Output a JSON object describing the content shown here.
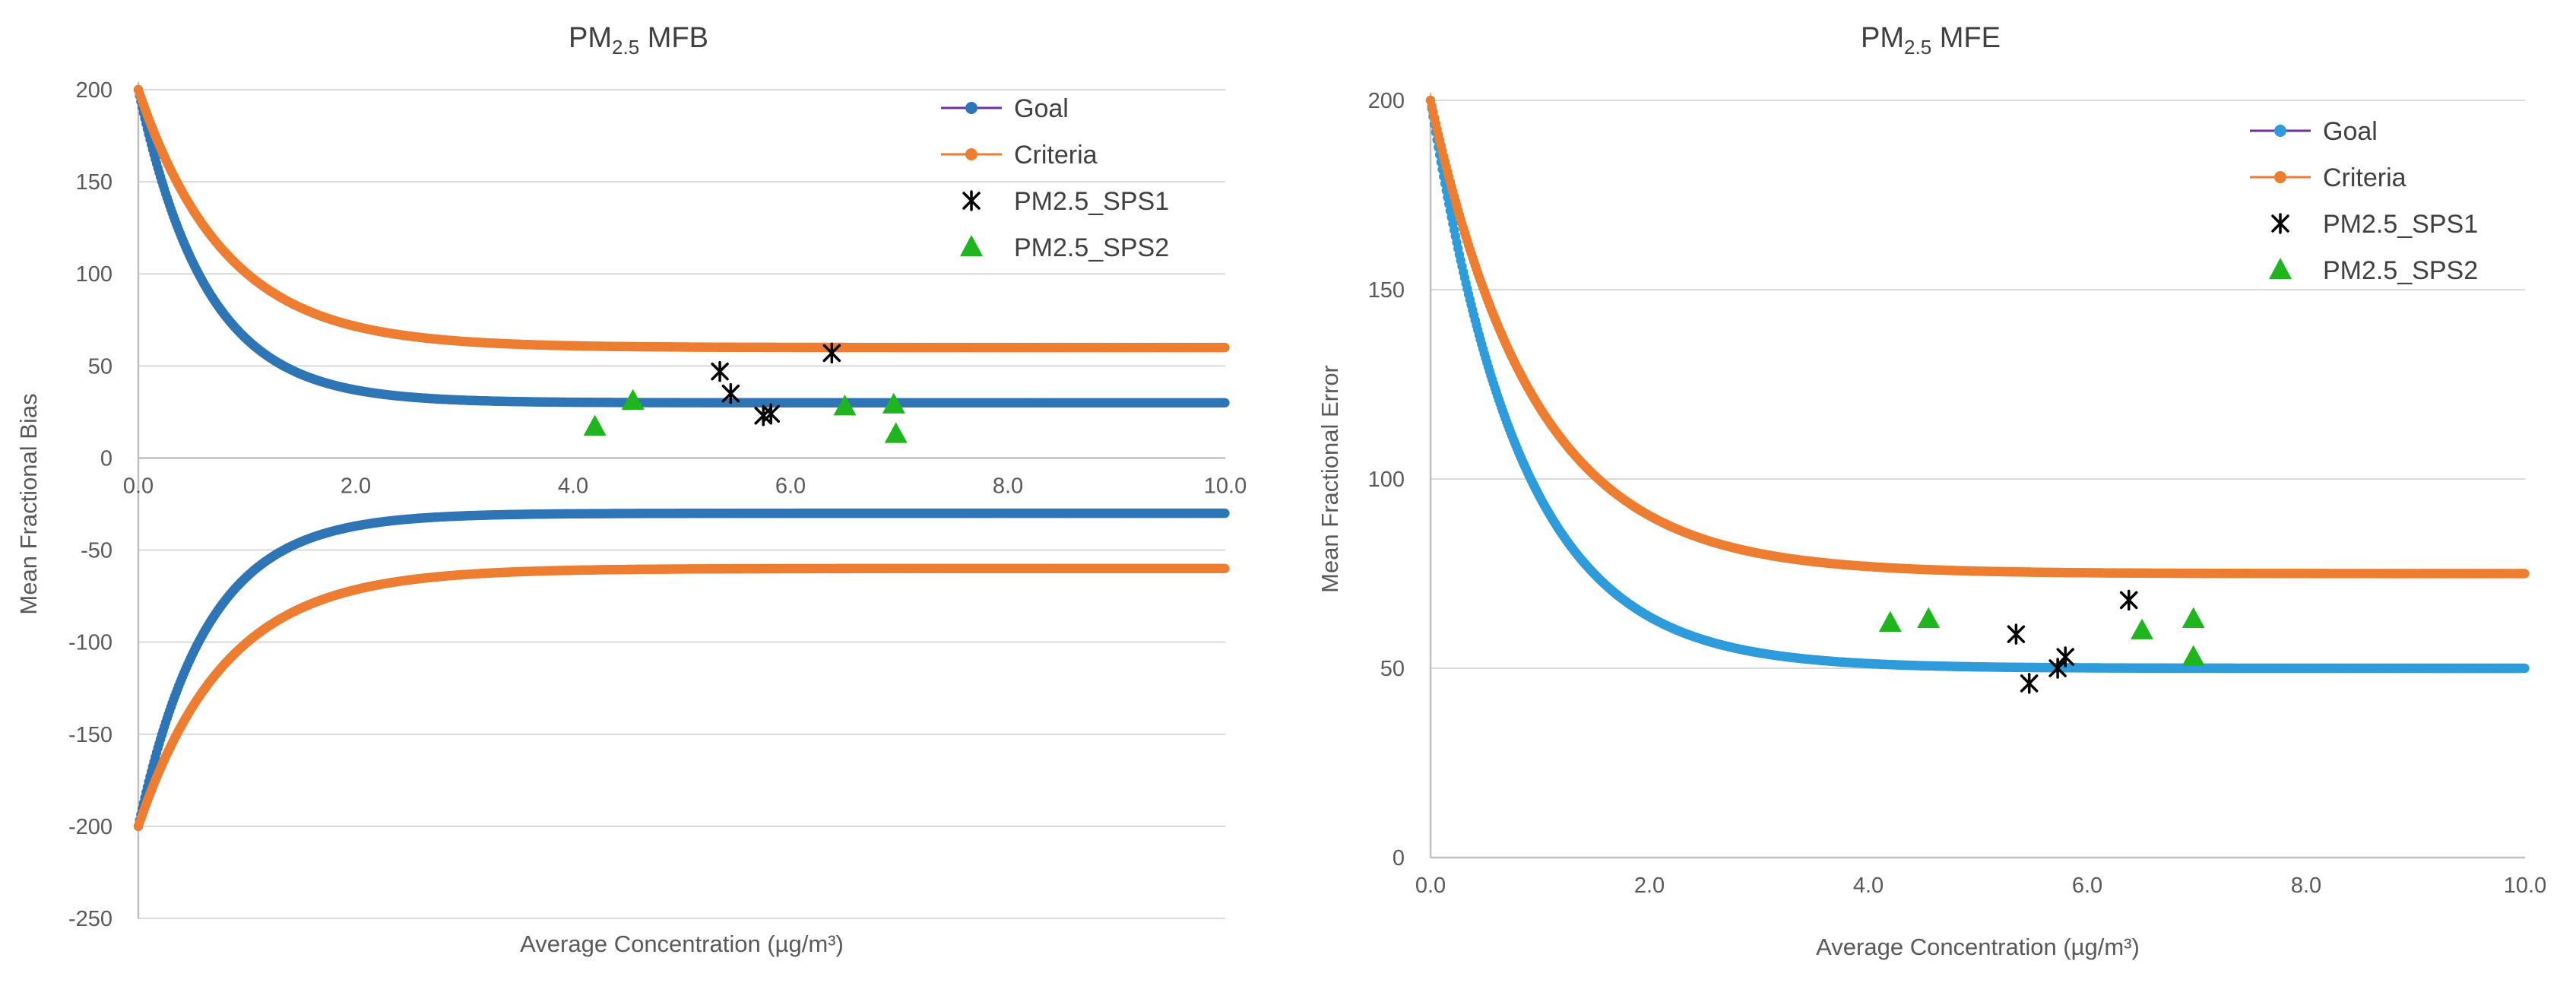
{
  "chart_data": [
    {
      "id": "mfb",
      "type": "scatter",
      "title": {
        "main": "PM",
        "sub": "2.5",
        "suffix": " MFB"
      },
      "xlabel": "Average Concentration (µg/m³)",
      "ylabel": "Mean Fractional Bias",
      "xlim": [
        0,
        10
      ],
      "ylim": [
        -250,
        200
      ],
      "xticks": [
        0,
        2,
        4,
        6,
        8,
        10
      ],
      "xtick_labels": [
        "0.0",
        "2.0",
        "4.0",
        "6.0",
        "8.0",
        "10.0"
      ],
      "yticks": [
        200,
        150,
        100,
        50,
        0,
        -50,
        -100,
        -150,
        -200,
        -250
      ],
      "ytick_labels": [
        "200",
        "150",
        "100",
        "50",
        "0",
        "-50",
        "-100",
        "-150",
        "-200",
        "-250"
      ],
      "x_axis_at_y": 0,
      "grid": true,
      "legend": {
        "position": "top-right",
        "entries": [
          "Goal",
          "Criteria",
          "PM2.5_SPS1",
          "PM2.5_SPS2"
        ]
      },
      "series": [
        {
          "name": "Goal",
          "kind": "curve",
          "color": "#2e75b6",
          "y0": 200,
          "plateau": 30,
          "k": 1.6,
          "mirrored": true
        },
        {
          "name": "Criteria",
          "kind": "curve",
          "color": "#ed7d31",
          "y0": 200,
          "plateau": 60,
          "k": 1.25,
          "mirrored": true
        },
        {
          "name": "PM2.5_SPS1",
          "kind": "points",
          "marker": "asterisk",
          "color": "#000000",
          "x": [
            5.35,
            5.45,
            5.75,
            5.82,
            6.38
          ],
          "y": [
            47,
            35,
            23,
            24,
            57
          ]
        },
        {
          "name": "PM2.5_SPS2",
          "kind": "points",
          "marker": "triangle",
          "color": "#1fb51f",
          "x": [
            4.2,
            4.55,
            6.5,
            6.95,
            6.97
          ],
          "y": [
            17,
            31,
            28,
            29,
            13
          ]
        }
      ]
    },
    {
      "id": "mfe",
      "type": "scatter",
      "title": {
        "main": "PM",
        "sub": "2.5",
        "suffix": " MFE"
      },
      "xlabel": "Average Concentration (µg/m³)",
      "ylabel": "Mean Fractional Error",
      "xlim": [
        0,
        10
      ],
      "ylim": [
        0,
        200
      ],
      "xticks": [
        0,
        2,
        4,
        6,
        8,
        10
      ],
      "xtick_labels": [
        "0.0",
        "2.0",
        "4.0",
        "6.0",
        "8.0",
        "10.0"
      ],
      "yticks": [
        200,
        150,
        100,
        50,
        0
      ],
      "ytick_labels": [
        "200",
        "150",
        "100",
        "50",
        "0"
      ],
      "x_axis_at_y": 0,
      "grid": true,
      "legend": {
        "position": "top-right",
        "entries": [
          "Goal",
          "Criteria",
          "PM2.5_SPS1",
          "PM2.5_SPS2"
        ]
      },
      "series": [
        {
          "name": "Goal",
          "kind": "curve",
          "color": "#2e9bdb",
          "y0": 200,
          "plateau": 50,
          "k": 1.2,
          "mirrored": false
        },
        {
          "name": "Criteria",
          "kind": "curve",
          "color": "#ed7d31",
          "y0": 200,
          "plateau": 75,
          "k": 1.05,
          "mirrored": false
        },
        {
          "name": "PM2.5_SPS1",
          "kind": "points",
          "marker": "asterisk",
          "color": "#000000",
          "x": [
            5.35,
            5.47,
            5.73,
            5.8,
            6.38
          ],
          "y": [
            59,
            46,
            50,
            53,
            68
          ]
        },
        {
          "name": "PM2.5_SPS2",
          "kind": "points",
          "marker": "triangle",
          "color": "#1fb51f",
          "x": [
            4.2,
            4.55,
            6.5,
            6.97,
            6.97
          ],
          "y": [
            62,
            63,
            60,
            63,
            53
          ]
        }
      ]
    }
  ]
}
